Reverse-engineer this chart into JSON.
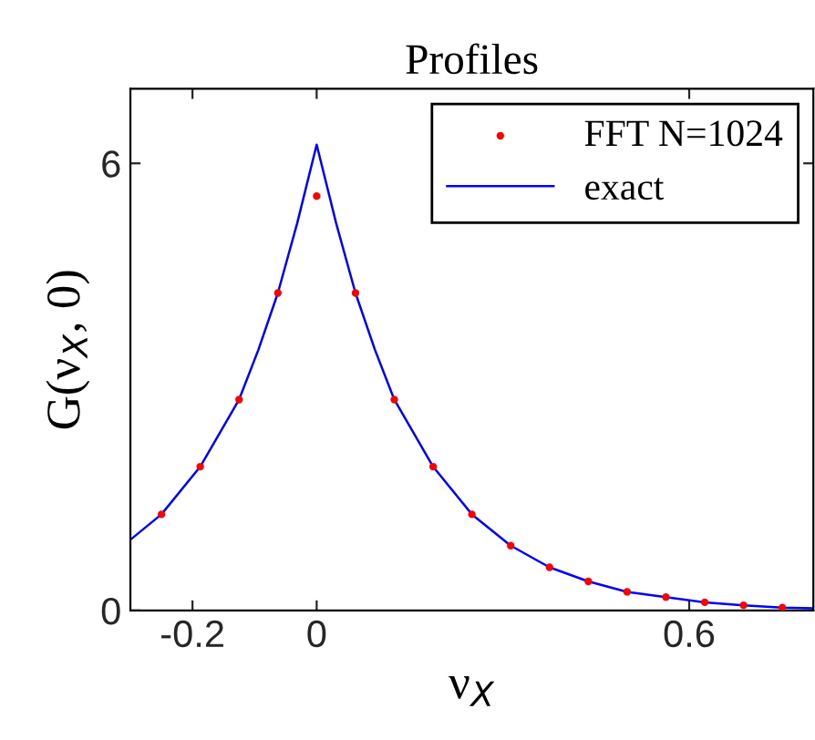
{
  "chart_data": {
    "type": "line",
    "title": "Profiles",
    "xlabel": "ν$_{X}$",
    "ylabel": "G(ν$_{X}$, 0)",
    "xlim": [
      -0.3,
      0.8
    ],
    "ylim": [
      0,
      7
    ],
    "xticks": [
      -0.2,
      0,
      0.6
    ],
    "yticks": [
      0,
      6
    ],
    "grid": false,
    "legend": "top right",
    "series": [
      {
        "name": "FFT N=1024",
        "type": "scatter",
        "marker": "circle",
        "color": "#ff0000",
        "x": [
          -0.25,
          -0.1875,
          -0.125,
          -0.0625,
          0,
          0.0625,
          0.125,
          0.1875,
          0.25,
          0.3125,
          0.375,
          0.4375,
          0.5,
          0.5625,
          0.625,
          0.6875,
          0.75
        ],
        "values": [
          1.29,
          1.93,
          2.83,
          4.26,
          5.56,
          4.26,
          2.83,
          1.93,
          1.29,
          0.87,
          0.58,
          0.39,
          0.25,
          0.18,
          0.11,
          0.07,
          0.04
        ]
      },
      {
        "name": "exact",
        "color": "#0000ff",
        "x": [
          -0.3,
          -0.25,
          -0.1875,
          -0.125,
          -0.09375,
          -0.0625,
          -0.03125,
          0,
          0.03125,
          0.0625,
          0.09375,
          0.125,
          0.1875,
          0.25,
          0.3125,
          0.375,
          0.4375,
          0.5,
          0.5625,
          0.625,
          0.6875,
          0.75,
          0.8
        ],
        "values": [
          0.95,
          1.29,
          1.93,
          2.83,
          3.5,
          4.26,
          5.2,
          6.25,
          5.2,
          4.26,
          3.5,
          2.83,
          1.93,
          1.29,
          0.87,
          0.58,
          0.39,
          0.25,
          0.18,
          0.11,
          0.07,
          0.04,
          0.03
        ]
      }
    ]
  }
}
